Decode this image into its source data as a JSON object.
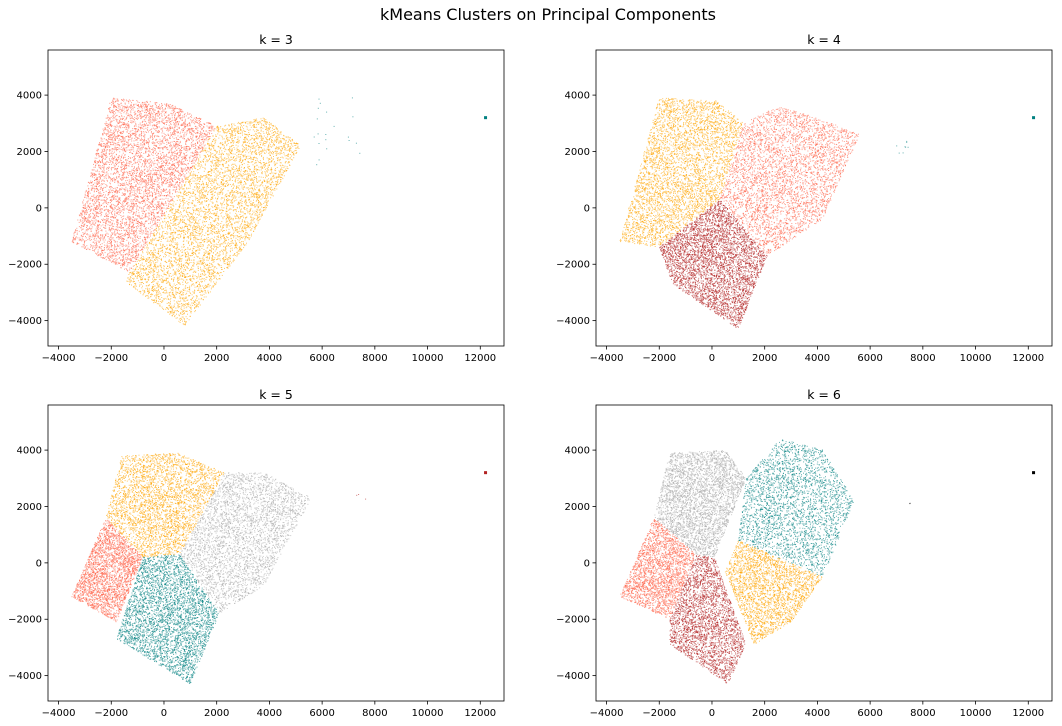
{
  "figure": {
    "suptitle": "kMeans Clusters on Principal Components"
  },
  "colors": {
    "tomato": "#ff6347",
    "orange": "#ffa500",
    "teal": "#008080",
    "firebrick": "#b22222",
    "darkgray": "#a9a9a9",
    "black": "#000000"
  },
  "chart_data": [
    {
      "type": "scatter",
      "title": "k = 3",
      "xlim": [
        -4400,
        12900
      ],
      "ylim": [
        -4900,
        5600
      ],
      "xticks": [
        -4000,
        -2000,
        0,
        2000,
        4000,
        6000,
        8000,
        10000,
        12000
      ],
      "yticks": [
        -4000,
        -2000,
        0,
        2000,
        4000
      ],
      "xticklabels": [
        "−4000",
        "−2000",
        "0",
        "2000",
        "4000",
        "6000",
        "8000",
        "10000",
        "12000"
      ],
      "yticklabels": [
        "−4000",
        "−2000",
        "0",
        "2000",
        "4000"
      ],
      "grid": false,
      "series": [
        {
          "cluster": 0,
          "color": "#ff6347",
          "points": 5200,
          "region": [
            [
              -3500,
              -1200
            ],
            [
              -2000,
              3900
            ],
            [
              200,
              3700
            ],
            [
              2000,
              2900
            ],
            [
              -1300,
              -2300
            ]
          ]
        },
        {
          "cluster": 1,
          "color": "#ffa500",
          "points": 5200,
          "region": [
            [
              -1300,
              -2300
            ],
            [
              2000,
              2900
            ],
            [
              3800,
              3200
            ],
            [
              5200,
              2200
            ],
            [
              3200,
              -1200
            ],
            [
              800,
              -4200
            ],
            [
              -1500,
              -2600
            ]
          ]
        },
        {
          "cluster": 2,
          "color": "#008080",
          "points": 20,
          "region": [
            [
              5500,
              1500
            ],
            [
              7600,
              1500
            ],
            [
              7600,
              3900
            ],
            [
              5500,
              3900
            ]
          ],
          "outlier": [
            12200,
            3200
          ]
        }
      ]
    },
    {
      "type": "scatter",
      "title": "k = 4",
      "xlim": [
        -4400,
        12900
      ],
      "ylim": [
        -4900,
        5600
      ],
      "xticks": [
        -4000,
        -2000,
        0,
        2000,
        4000,
        6000,
        8000,
        10000,
        12000
      ],
      "yticks": [
        -4000,
        -2000,
        0,
        2000,
        4000
      ],
      "xticklabels": [
        "−4000",
        "−2000",
        "0",
        "2000",
        "4000",
        "6000",
        "8000",
        "10000",
        "12000"
      ],
      "yticklabels": [
        "−4000",
        "−2000",
        "0",
        "2000",
        "4000"
      ],
      "grid": false,
      "series": [
        {
          "cluster": 0,
          "color": "#ffa500",
          "points": 4200,
          "region": [
            [
              -3500,
              -1200
            ],
            [
              -2000,
              3900
            ],
            [
              200,
              3800
            ],
            [
              1200,
              3000
            ],
            [
              300,
              300
            ],
            [
              -2000,
              -1400
            ]
          ]
        },
        {
          "cluster": 1,
          "color": "#ff6347",
          "points": 4000,
          "region": [
            [
              300,
              300
            ],
            [
              1200,
              3000
            ],
            [
              2500,
              3600
            ],
            [
              4000,
              3200
            ],
            [
              5600,
              2600
            ],
            [
              4200,
              -400
            ],
            [
              2100,
              -1700
            ]
          ]
        },
        {
          "cluster": 2,
          "color": "#b22222",
          "points": 4400,
          "region": [
            [
              -2000,
              -1400
            ],
            [
              300,
              300
            ],
            [
              2100,
              -1700
            ],
            [
              1000,
              -4300
            ],
            [
              -1500,
              -2700
            ]
          ]
        },
        {
          "cluster": 3,
          "color": "#008080",
          "points": 8,
          "region": [
            [
              7000,
              1900
            ],
            [
              7600,
              1900
            ],
            [
              7600,
              2500
            ],
            [
              7000,
              2500
            ]
          ],
          "outlier": [
            12200,
            3200
          ]
        }
      ]
    },
    {
      "type": "scatter",
      "title": "k = 5",
      "xlim": [
        -4400,
        12900
      ],
      "ylim": [
        -4900,
        5600
      ],
      "xticks": [
        -4000,
        -2000,
        0,
        2000,
        4000,
        6000,
        8000,
        10000,
        12000
      ],
      "yticks": [
        -4000,
        -2000,
        0,
        2000,
        4000
      ],
      "xticklabels": [
        "−4000",
        "−2000",
        "0",
        "2000",
        "4000",
        "6000",
        "8000",
        "10000",
        "12000"
      ],
      "yticklabels": [
        "−4000",
        "−2000",
        "0",
        "2000",
        "4000"
      ],
      "grid": false,
      "series": [
        {
          "cluster": 0,
          "color": "#ff6347",
          "points": 2600,
          "region": [
            [
              -3500,
              -1200
            ],
            [
              -2200,
              1600
            ],
            [
              -800,
              200
            ],
            [
              -1800,
              -2100
            ]
          ]
        },
        {
          "cluster": 1,
          "color": "#ffa500",
          "points": 3400,
          "region": [
            [
              -2200,
              1600
            ],
            [
              -1600,
              3800
            ],
            [
              500,
              3900
            ],
            [
              2300,
              3200
            ],
            [
              600,
              300
            ],
            [
              -800,
              200
            ]
          ]
        },
        {
          "cluster": 2,
          "color": "#008080",
          "points": 3800,
          "region": [
            [
              -800,
              200
            ],
            [
              600,
              300
            ],
            [
              2100,
              -1800
            ],
            [
              1000,
              -4300
            ],
            [
              -1800,
              -2700
            ]
          ]
        },
        {
          "cluster": 3,
          "color": "#a9a9a9",
          "points": 3400,
          "region": [
            [
              600,
              300
            ],
            [
              2300,
              3200
            ],
            [
              3800,
              3200
            ],
            [
              5600,
              2300
            ],
            [
              3800,
              -800
            ],
            [
              2100,
              -1800
            ]
          ]
        },
        {
          "cluster": 4,
          "color": "#b22222",
          "points": 3,
          "region": [
            [
              7300,
              2200
            ],
            [
              7700,
              2200
            ],
            [
              7700,
              2500
            ],
            [
              7300,
              2500
            ]
          ],
          "outlier": [
            12200,
            3200
          ]
        }
      ]
    },
    {
      "type": "scatter",
      "title": "k = 6",
      "xlim": [
        -4400,
        12900
      ],
      "ylim": [
        -4900,
        5600
      ],
      "xticks": [
        -4000,
        -2000,
        0,
        2000,
        4000,
        6000,
        8000,
        10000,
        12000
      ],
      "yticks": [
        -4000,
        -2000,
        0,
        2000,
        4000
      ],
      "xticklabels": [
        "−4000",
        "−2000",
        "0",
        "2000",
        "4000",
        "6000",
        "8000",
        "10000",
        "12000"
      ],
      "yticklabels": [
        "−4000",
        "−2000",
        "0",
        "2000",
        "4000"
      ],
      "grid": false,
      "series": [
        {
          "cluster": 0,
          "color": "#ff6347",
          "points": 2400,
          "region": [
            [
              -3500,
              -1200
            ],
            [
              -2200,
              1600
            ],
            [
              -600,
              300
            ],
            [
              -1600,
              -2000
            ]
          ]
        },
        {
          "cluster": 1,
          "color": "#a9a9a9",
          "points": 3400,
          "region": [
            [
              -2200,
              1600
            ],
            [
              -1600,
              3900
            ],
            [
              500,
              4000
            ],
            [
              1300,
              3000
            ],
            [
              100,
              200
            ],
            [
              -600,
              300
            ]
          ]
        },
        {
          "cluster": 2,
          "color": "#008080",
          "points": 3000,
          "region": [
            [
              1300,
              3000
            ],
            [
              2600,
              4400
            ],
            [
              4200,
              4000
            ],
            [
              5400,
              2200
            ],
            [
              4200,
              -500
            ],
            [
              1000,
              800
            ]
          ]
        },
        {
          "cluster": 3,
          "color": "#ffa500",
          "points": 2600,
          "region": [
            [
              1000,
              800
            ],
            [
              4200,
              -500
            ],
            [
              3000,
              -2100
            ],
            [
              1600,
              -2900
            ],
            [
              500,
              -300
            ]
          ]
        },
        {
          "cluster": 4,
          "color": "#b22222",
          "points": 3000,
          "region": [
            [
              -1600,
              -2000
            ],
            [
              -600,
              300
            ],
            [
              100,
              200
            ],
            [
              1300,
              -2900
            ],
            [
              600,
              -4300
            ],
            [
              -1600,
              -2900
            ]
          ]
        },
        {
          "cluster": 5,
          "color": "#000000",
          "points": 2,
          "region": [
            [
              7500,
              2100
            ],
            [
              7700,
              2100
            ],
            [
              7700,
              2300
            ],
            [
              7500,
              2300
            ]
          ],
          "outlier": [
            12200,
            3200
          ]
        }
      ]
    }
  ]
}
